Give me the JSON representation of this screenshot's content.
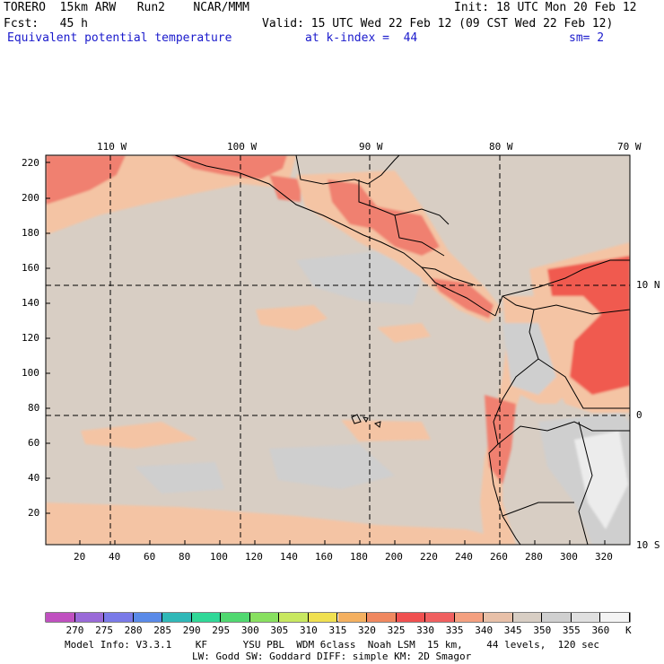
{
  "header": {
    "model": "TORERO  15km ARW   Run2    NCAR/MMM",
    "init": "Init: 18 UTC Mon 20 Feb 12",
    "fcst": "Fcst:   45 h",
    "valid": "Valid: 15 UTC Wed 22 Feb 12 (09 CST Wed 22 Feb 12)",
    "field": "Equivalent potential temperature",
    "level": "at k-index =  44",
    "smooth": "sm= 2"
  },
  "map": {
    "lon_labels": [
      "110 W",
      "100 W",
      "90 W",
      "80 W",
      "70 W"
    ],
    "lat_labels": [
      "10 N",
      "0",
      "10 S"
    ],
    "y_ticks": [
      "220",
      "200",
      "180",
      "160",
      "140",
      "120",
      "100",
      "80",
      "60",
      "40",
      "20"
    ],
    "x_ticks": [
      "20",
      "40",
      "60",
      "80",
      "100",
      "120",
      "140",
      "160",
      "180",
      "200",
      "220",
      "240",
      "260",
      "280",
      "300",
      "320"
    ]
  },
  "colorbar": {
    "labels": [
      "270",
      "275",
      "280",
      "285",
      "290",
      "295",
      "300",
      "305",
      "310",
      "315",
      "320",
      "325",
      "330",
      "335",
      "340",
      "345",
      "350",
      "355",
      "360"
    ],
    "unit": "K",
    "colors": [
      "#c050c0",
      "#9a6ad8",
      "#7a7ae8",
      "#5a8ae8",
      "#30b8b8",
      "#30d898",
      "#50d870",
      "#88e060",
      "#c8e860",
      "#f0e050",
      "#f4b060",
      "#f08860",
      "#f05050",
      "#f06060",
      "#f4a080",
      "#e8c0a8",
      "#d8cec4",
      "#d0d0d0",
      "#e0e0e0",
      "#f4f4f4"
    ]
  },
  "footer": {
    "line1": "Model Info: V3.3.1    KF      YSU PBL  WDM 6class  Noah LSM  15 km,    44 levels,  120 sec",
    "line2": "LW: Godd SW: Goddard DIFF: simple KM: 2D Smagor"
  },
  "field_colors": {
    "background": "#d8cec4",
    "warm": "#f4c4a4",
    "hot": "#f08070",
    "hottest": "#f05a50",
    "cool": "#cfcfcf",
    "coolest": "#ececec"
  }
}
